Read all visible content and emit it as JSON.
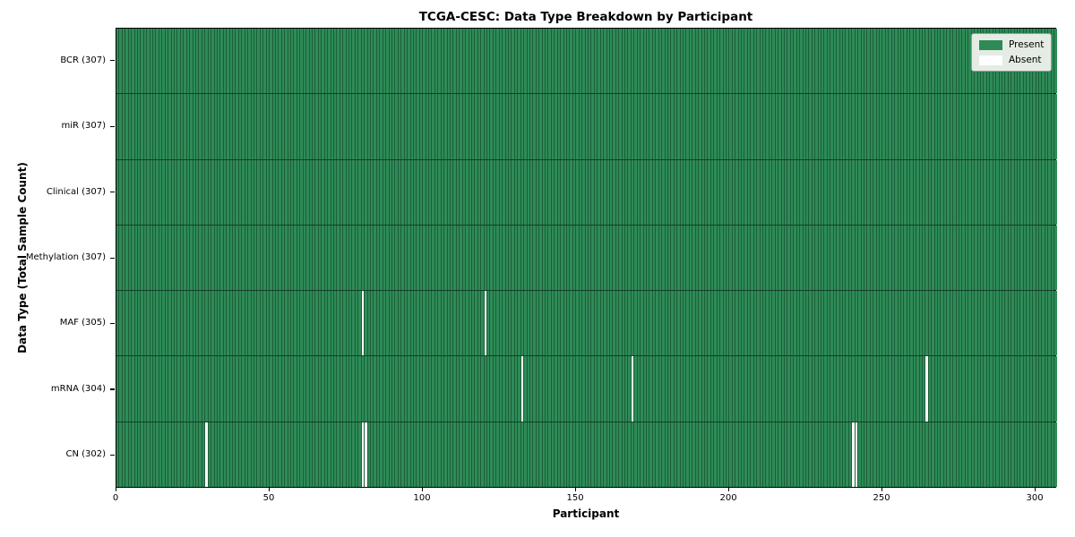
{
  "chart_data": {
    "type": "heatmap",
    "title": "TCGA-CESC: Data Type Breakdown by Participant",
    "xlabel": "Participant",
    "ylabel": "Data Type (Total Sample Count)",
    "n_participants": 307,
    "xlim": [
      0,
      307
    ],
    "x_ticks": [
      0,
      50,
      100,
      150,
      200,
      250,
      300
    ],
    "grid": false,
    "legend_position": "upper right",
    "rows": [
      {
        "label": "BCR (307)",
        "data_type": "BCR",
        "present_count": 307,
        "absent_participants": []
      },
      {
        "label": "miR (307)",
        "data_type": "miR",
        "present_count": 307,
        "absent_participants": []
      },
      {
        "label": "Clinical (307)",
        "data_type": "Clinical",
        "present_count": 307,
        "absent_participants": []
      },
      {
        "label": "Methylation (307)",
        "data_type": "Methylation",
        "present_count": 307,
        "absent_participants": []
      },
      {
        "label": "MAF (305)",
        "data_type": "MAF",
        "present_count": 305,
        "absent_participants": [
          80,
          120
        ]
      },
      {
        "label": "mRNA (304)",
        "data_type": "mRNA",
        "present_count": 304,
        "absent_participants": [
          132,
          168,
          264
        ]
      },
      {
        "label": "CN (302)",
        "data_type": "CN",
        "present_count": 302,
        "absent_participants": [
          29,
          80,
          81,
          240,
          241
        ]
      }
    ],
    "legend": [
      {
        "label": "Present",
        "color": "#2e8b57"
      },
      {
        "label": "Absent",
        "color": "#ffffff"
      }
    ],
    "colors": {
      "present": "#2e8b57",
      "absent": "#ffffff",
      "cell_edge": "#1c5e39",
      "plot_border": "#000000"
    }
  }
}
